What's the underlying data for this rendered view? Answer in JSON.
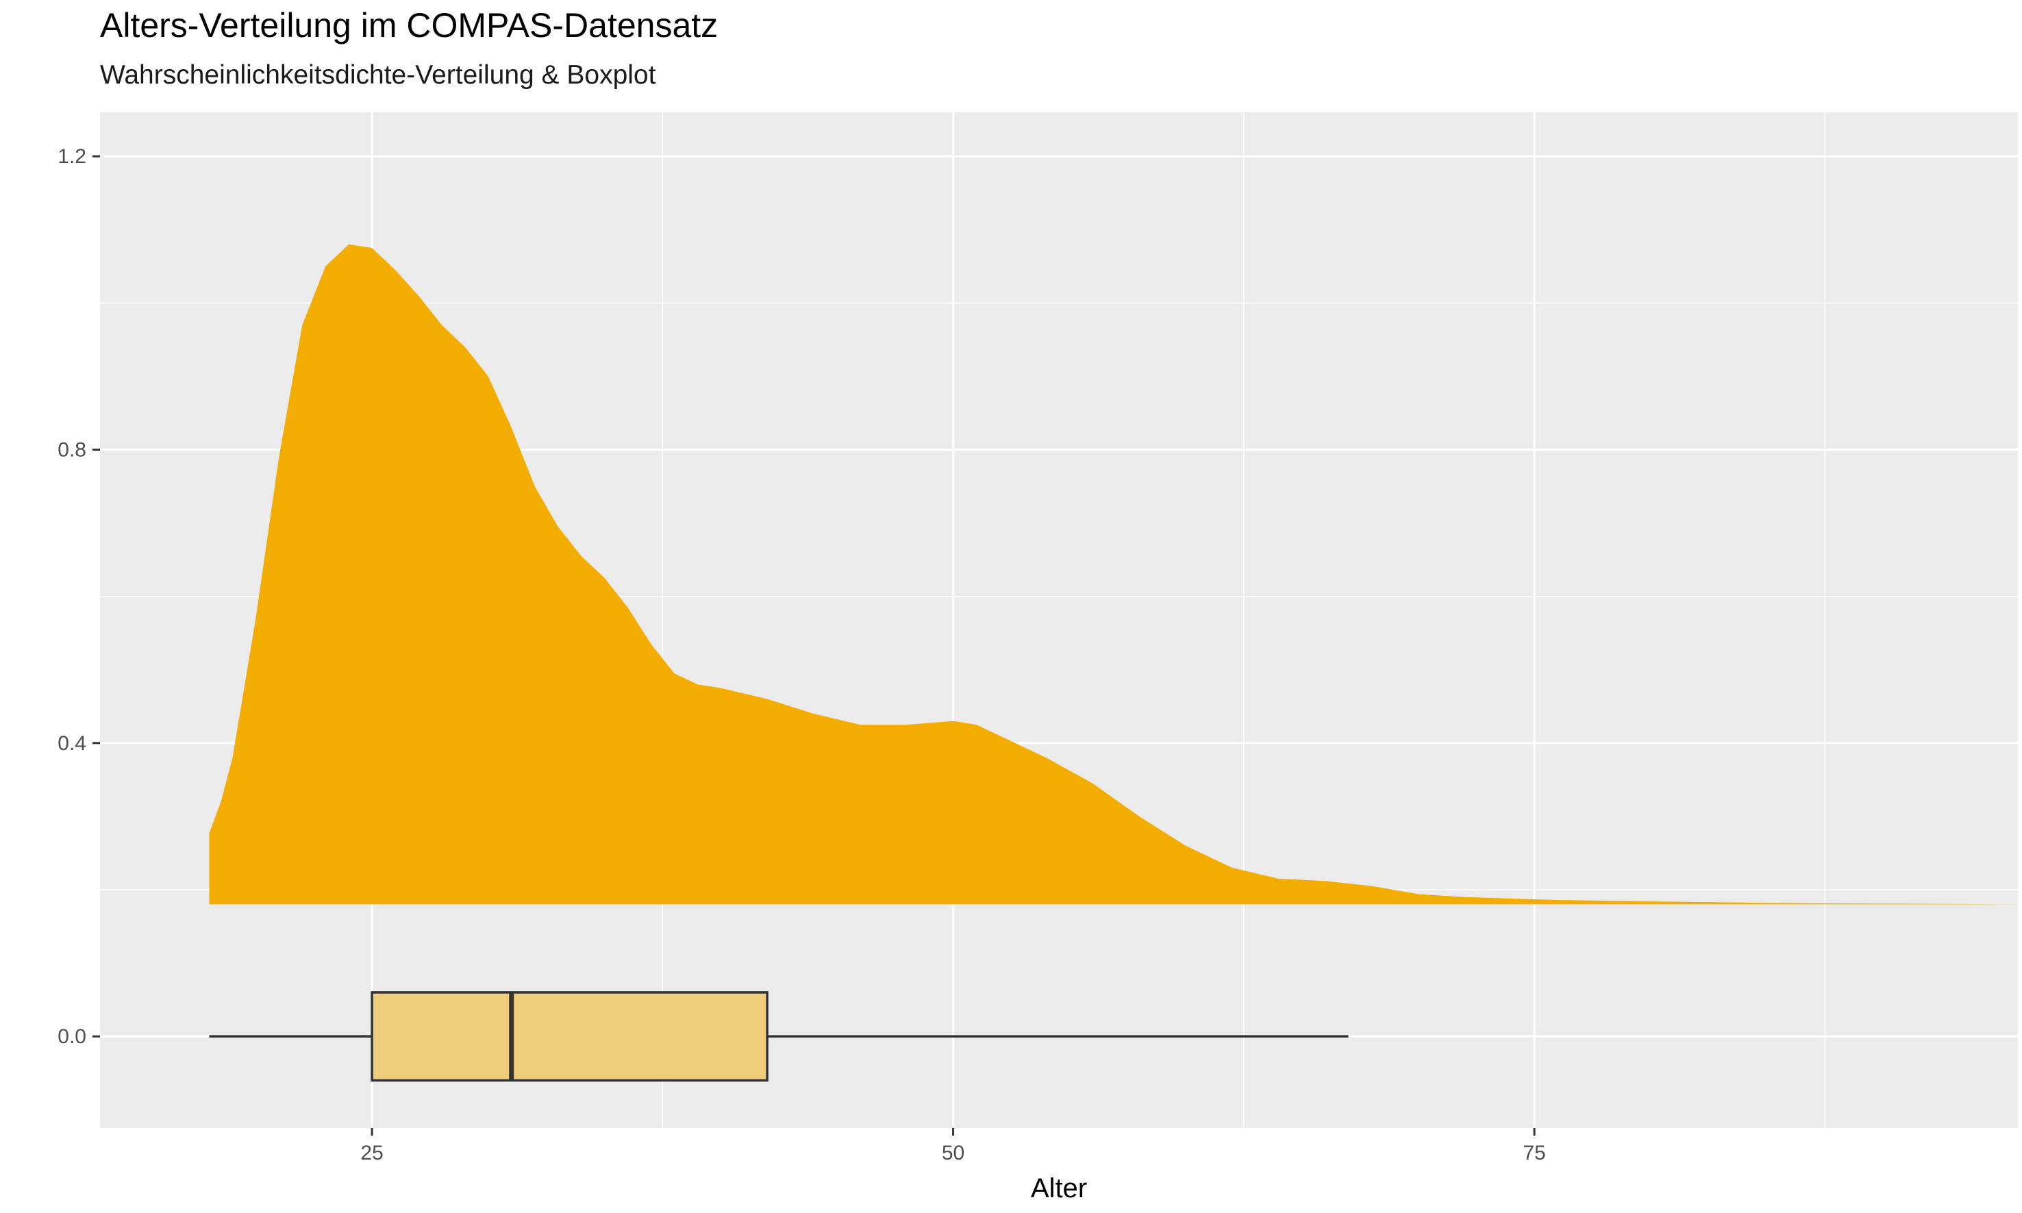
{
  "chart_data": {
    "type": "density+boxplot",
    "title": "Alters-Verteilung im COMPAS-Datensatz",
    "subtitle": "Wahrscheinlichkeitsdichte-Verteilung & Boxplot",
    "xlabel": "Alter",
    "ylabel": "",
    "xlim": [
      13.3,
      95.8
    ],
    "ylim": [
      -0.125,
      1.26
    ],
    "x_ticks": [
      25,
      50,
      75
    ],
    "x_tick_labels": [
      "25",
      "50",
      "75"
    ],
    "y_ticks": [
      0.0,
      0.4,
      0.8,
      1.2
    ],
    "y_tick_labels": [
      "0.0",
      "0.4",
      "0.8",
      "1.2"
    ],
    "grid": true,
    "colors": {
      "panel_background": "#EBEBEB",
      "grid_major": "#FFFFFF",
      "density_fill": "#F2AD00",
      "box_fill": "#EECC78",
      "box_line": "#333333",
      "tick_text": "#4D4D4D"
    },
    "density": {
      "baseline": 0.18,
      "x": [
        18,
        18.5,
        19,
        20,
        21,
        22,
        23,
        24,
        25,
        26,
        27,
        28,
        29,
        30,
        31,
        32,
        33,
        34,
        35,
        36,
        37,
        38,
        39,
        40,
        42,
        44,
        46,
        48,
        50,
        51,
        52,
        53,
        54,
        56,
        58,
        60,
        62,
        64,
        66,
        68,
        70,
        72,
        74,
        76,
        80,
        85,
        90,
        96
      ],
      "y": [
        0.277,
        0.32,
        0.38,
        0.57,
        0.79,
        0.97,
        1.05,
        1.08,
        1.075,
        1.045,
        1.01,
        0.97,
        0.94,
        0.9,
        0.83,
        0.75,
        0.695,
        0.655,
        0.625,
        0.585,
        0.535,
        0.495,
        0.48,
        0.475,
        0.46,
        0.44,
        0.425,
        0.425,
        0.43,
        0.425,
        0.41,
        0.395,
        0.38,
        0.345,
        0.3,
        0.26,
        0.23,
        0.215,
        0.212,
        0.205,
        0.194,
        0.19,
        0.188,
        0.186,
        0.184,
        0.182,
        0.181,
        0.18
      ]
    },
    "boxplot": {
      "y": 0.0,
      "half_height": 0.06,
      "whisker_low": 18,
      "q1": 25,
      "median": 31,
      "q3": 42,
      "whisker_high": 67
    }
  }
}
